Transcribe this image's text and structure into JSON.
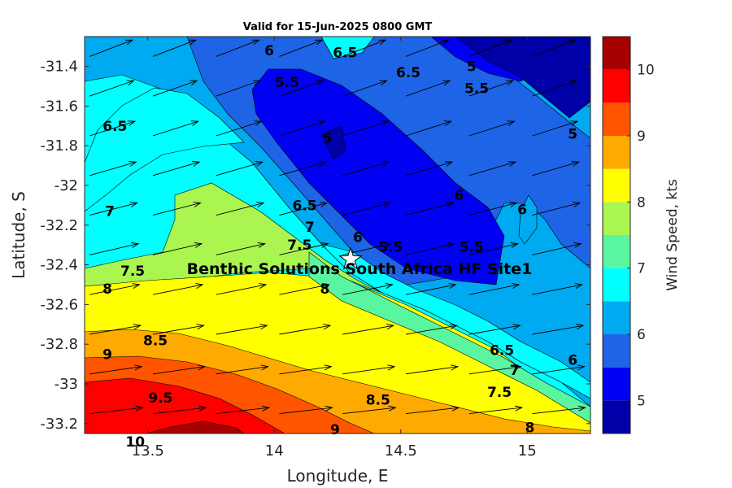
{
  "chart_data": {
    "type": "contour",
    "title": "Valid for 15-Jun-2025 0800 GMT",
    "xlabel": "Longitude, E",
    "ylabel": "Latitude, S",
    "xlim": [
      13.25,
      15.25
    ],
    "ylim": [
      -33.25,
      -31.25
    ],
    "xticks": [
      13.5,
      14,
      14.5,
      15
    ],
    "xtick_labels": [
      "13.5",
      "14",
      "14.5",
      "15"
    ],
    "yticks": [
      -31.4,
      -31.6,
      -31.8,
      -32,
      -32.2,
      -32.4,
      -32.6,
      -32.8,
      -33,
      -33.2
    ],
    "ytick_labels": [
      "-31.4",
      "-31.6",
      "-31.8",
      "-32",
      "-32.2",
      "-32.4",
      "-32.6",
      "-32.8",
      "-33",
      "-33.2"
    ],
    "colorbar": {
      "label": "Wind Speed, kts",
      "range": [
        4.5,
        10.5
      ],
      "ticks": [
        5,
        6,
        7,
        8,
        9,
        10
      ],
      "tick_labels": [
        "5",
        "6",
        "7",
        "8",
        "9",
        "10"
      ],
      "levels": [
        4.5,
        5,
        5.5,
        6,
        6.5,
        7,
        7.5,
        8,
        8.5,
        9,
        9.5,
        10,
        10.5
      ],
      "colors": [
        "#0000a8",
        "#0000f2",
        "#1e64e6",
        "#00aaf0",
        "#00ffff",
        "#5af5a0",
        "#aaf550",
        "#ffff00",
        "#ffaa00",
        "#ff5500",
        "#ff0000",
        "#a80000"
      ]
    },
    "contour_labels": [
      {
        "text": "6",
        "lon": 13.98,
        "lat": -31.32
      },
      {
        "text": "6.5",
        "lon": 14.28,
        "lat": -31.33
      },
      {
        "text": "6.5",
        "lon": 14.53,
        "lat": -31.43
      },
      {
        "text": "5.5",
        "lon": 14.05,
        "lat": -31.48
      },
      {
        "text": "5",
        "lon": 14.78,
        "lat": -31.4
      },
      {
        "text": "5.5",
        "lon": 14.8,
        "lat": -31.51
      },
      {
        "text": "6.5",
        "lon": 13.37,
        "lat": -31.7
      },
      {
        "text": "5",
        "lon": 14.21,
        "lat": -31.76
      },
      {
        "text": "5",
        "lon": 15.18,
        "lat": -31.74
      },
      {
        "text": "6",
        "lon": 14.73,
        "lat": -32.05
      },
      {
        "text": "6",
        "lon": 14.98,
        "lat": -32.12
      },
      {
        "text": "7",
        "lon": 13.35,
        "lat": -32.13
      },
      {
        "text": "6.5",
        "lon": 14.12,
        "lat": -32.1
      },
      {
        "text": "7",
        "lon": 14.14,
        "lat": -32.21
      },
      {
        "text": "7.5",
        "lon": 14.1,
        "lat": -32.3
      },
      {
        "text": "6",
        "lon": 14.33,
        "lat": -32.26
      },
      {
        "text": "5.5",
        "lon": 14.46,
        "lat": -32.31
      },
      {
        "text": "5.5",
        "lon": 14.78,
        "lat": -32.31
      },
      {
        "text": "7.5",
        "lon": 13.44,
        "lat": -32.43
      },
      {
        "text": "8",
        "lon": 13.34,
        "lat": -32.52
      },
      {
        "text": "8",
        "lon": 14.2,
        "lat": -32.52
      },
      {
        "text": "8.5",
        "lon": 13.53,
        "lat": -32.78
      },
      {
        "text": "9",
        "lon": 13.34,
        "lat": -32.85
      },
      {
        "text": "6.5",
        "lon": 14.9,
        "lat": -32.83
      },
      {
        "text": "6",
        "lon": 15.18,
        "lat": -32.88
      },
      {
        "text": "7",
        "lon": 14.95,
        "lat": -32.93
      },
      {
        "text": "7.5",
        "lon": 14.89,
        "lat": -33.04
      },
      {
        "text": "9.5",
        "lon": 13.55,
        "lat": -33.07
      },
      {
        "text": "8.5",
        "lon": 14.41,
        "lat": -33.08
      },
      {
        "text": "9",
        "lon": 14.24,
        "lat": -33.23
      },
      {
        "text": "8",
        "lon": 15.01,
        "lat": -33.22
      },
      {
        "text": "10",
        "lon": 13.45,
        "lat": -33.29
      }
    ],
    "site": {
      "name": "Benthic Solutions South Africa HF Site1",
      "lon": 14.3,
      "lat": -32.37
    },
    "wind_vectors": {
      "spacing_lon": 0.25,
      "spacing_lat": 0.2,
      "direction": "toward east-northeast"
    }
  }
}
